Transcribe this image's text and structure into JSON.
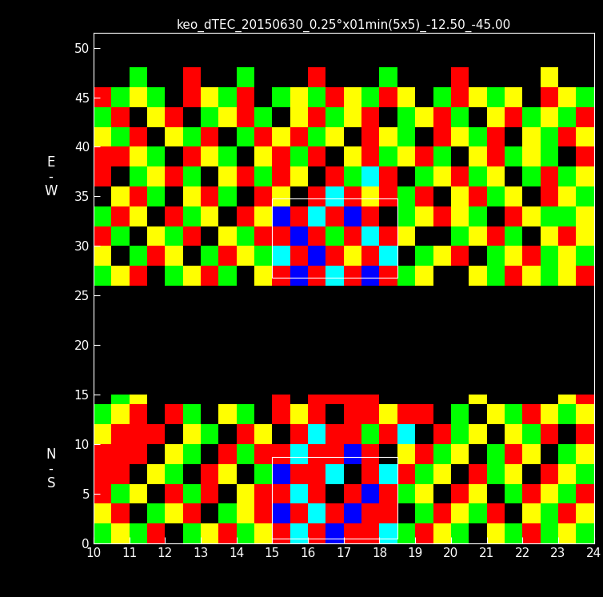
{
  "chart_data": {
    "type": "heatmap",
    "title": "keo_dTEC_20150630_0.25°x01min(5x5)_-12.50_-45.00",
    "xlim": [
      10,
      24
    ],
    "xticks": [
      10,
      11,
      12,
      13,
      14,
      15,
      16,
      17,
      18,
      19,
      20,
      21,
      22,
      23,
      24
    ],
    "ylim": [
      0,
      51.5
    ],
    "yticks": [
      0,
      5,
      10,
      15,
      20,
      25,
      30,
      35,
      40,
      45,
      50
    ],
    "x_edges": [
      10,
      10.5,
      11,
      11.5,
      12,
      12.5,
      13,
      13.5,
      14,
      14.5,
      15,
      15.5,
      16,
      16.5,
      17,
      17.5,
      18,
      18.5,
      19,
      19.5,
      20,
      20.5,
      21,
      21.5,
      22,
      22.5,
      23,
      23.5,
      24
    ],
    "grids": [
      {
        "name": "E\n-\nW",
        "y_edges": [
          26,
          28,
          30,
          32,
          34,
          36,
          38,
          40,
          42,
          44,
          46,
          48
        ],
        "cells": [
          [
            0,
            1,
            2,
            null,
            0,
            1,
            2,
            0,
            null,
            1,
            2,
            -2,
            2,
            -1,
            2,
            -2,
            2,
            0,
            1,
            null,
            null,
            1,
            0,
            2,
            1,
            0,
            1,
            2
          ],
          [
            1,
            null,
            0,
            2,
            1,
            null,
            0,
            2,
            1,
            0,
            -1,
            2,
            -2,
            2,
            1,
            2,
            -1,
            null,
            0,
            1,
            2,
            null,
            0,
            1,
            2,
            0,
            1,
            0
          ],
          [
            2,
            0,
            null,
            1,
            0,
            2,
            null,
            1,
            0,
            2,
            2,
            -2,
            2,
            0,
            2,
            -1,
            2,
            1,
            null,
            null,
            0,
            1,
            2,
            0,
            null,
            1,
            2,
            1
          ],
          [
            0,
            2,
            1,
            null,
            2,
            0,
            1,
            null,
            2,
            1,
            -2,
            2,
            -1,
            2,
            -2,
            2,
            null,
            0,
            1,
            2,
            1,
            0,
            null,
            2,
            1,
            0,
            0,
            1
          ],
          [
            null,
            1,
            2,
            0,
            null,
            1,
            2,
            0,
            null,
            2,
            1,
            null,
            2,
            -1,
            2,
            1,
            2,
            0,
            2,
            null,
            1,
            2,
            0,
            1,
            null,
            2,
            1,
            0
          ],
          [
            2,
            null,
            0,
            1,
            2,
            0,
            null,
            1,
            2,
            0,
            2,
            1,
            null,
            2,
            0,
            -1,
            2,
            null,
            0,
            1,
            2,
            0,
            1,
            null,
            0,
            2,
            0,
            1
          ],
          [
            2,
            2,
            1,
            0,
            null,
            2,
            1,
            0,
            null,
            1,
            2,
            0,
            2,
            null,
            1,
            2,
            0,
            1,
            2,
            0,
            null,
            1,
            2,
            0,
            1,
            0,
            null,
            2
          ],
          [
            1,
            0,
            2,
            null,
            1,
            0,
            2,
            null,
            0,
            2,
            1,
            2,
            0,
            1,
            null,
            2,
            1,
            0,
            null,
            2,
            1,
            0,
            2,
            null,
            1,
            0,
            2,
            1
          ],
          [
            0,
            2,
            null,
            1,
            2,
            null,
            0,
            1,
            2,
            0,
            null,
            1,
            2,
            0,
            1,
            2,
            null,
            0,
            1,
            2,
            0,
            null,
            1,
            2,
            0,
            1,
            0,
            2
          ],
          [
            2,
            0,
            1,
            0,
            null,
            2,
            1,
            0,
            2,
            null,
            0,
            1,
            0,
            2,
            1,
            0,
            2,
            1,
            null,
            0,
            2,
            1,
            0,
            1,
            null,
            2,
            1,
            0
          ],
          [
            null,
            null,
            0,
            null,
            null,
            2,
            null,
            null,
            0,
            null,
            null,
            null,
            2,
            null,
            null,
            null,
            0,
            null,
            null,
            null,
            2,
            null,
            null,
            null,
            null,
            1,
            null,
            null
          ]
        ],
        "box": {
          "x": [
            15,
            18.5
          ],
          "y": [
            26.8,
            34.8
          ]
        }
      },
      {
        "name": "N\n-\nS",
        "y_edges": [
          0,
          2,
          4,
          6,
          8,
          10,
          12,
          14,
          15
        ],
        "cells": [
          [
            0,
            1,
            0,
            2,
            null,
            0,
            1,
            2,
            0,
            1,
            2,
            -1,
            2,
            -2,
            2,
            2,
            -1,
            0,
            2,
            1,
            0,
            null,
            1,
            0,
            2,
            0,
            1,
            0
          ],
          [
            1,
            2,
            null,
            0,
            1,
            2,
            null,
            0,
            1,
            2,
            -2,
            2,
            -1,
            2,
            -2,
            2,
            2,
            null,
            0,
            2,
            1,
            0,
            2,
            null,
            1,
            0,
            2,
            1
          ],
          [
            2,
            0,
            1,
            null,
            2,
            0,
            2,
            null,
            1,
            2,
            2,
            -1,
            2,
            null,
            2,
            -2,
            2,
            0,
            1,
            null,
            2,
            1,
            null,
            0,
            2,
            1,
            0,
            2
          ],
          [
            2,
            2,
            null,
            1,
            0,
            null,
            2,
            1,
            null,
            0,
            -2,
            2,
            2,
            -1,
            null,
            2,
            -1,
            2,
            0,
            1,
            null,
            2,
            0,
            1,
            null,
            2,
            1,
            0
          ],
          [
            2,
            2,
            2,
            null,
            1,
            0,
            null,
            2,
            0,
            2,
            2,
            -1,
            2,
            2,
            -2,
            2,
            null,
            1,
            2,
            0,
            1,
            null,
            0,
            2,
            1,
            null,
            0,
            1
          ],
          [
            1,
            2,
            2,
            2,
            null,
            1,
            0,
            null,
            2,
            1,
            null,
            2,
            -1,
            2,
            2,
            0,
            2,
            -1,
            null,
            2,
            0,
            1,
            null,
            1,
            0,
            2,
            null,
            2
          ],
          [
            0,
            1,
            2,
            null,
            2,
            0,
            null,
            1,
            0,
            null,
            2,
            1,
            2,
            null,
            2,
            2,
            1,
            2,
            2,
            null,
            0,
            null,
            1,
            0,
            2,
            1,
            0,
            1
          ],
          [
            null,
            0,
            1,
            null,
            null,
            null,
            null,
            null,
            null,
            null,
            2,
            null,
            2,
            2,
            2,
            2,
            null,
            null,
            null,
            null,
            null,
            1,
            null,
            null,
            null,
            null,
            1,
            2
          ]
        ],
        "box": {
          "x": [
            15,
            18.5
          ],
          "y": [
            0.5,
            8.7
          ]
        }
      }
    ]
  }
}
